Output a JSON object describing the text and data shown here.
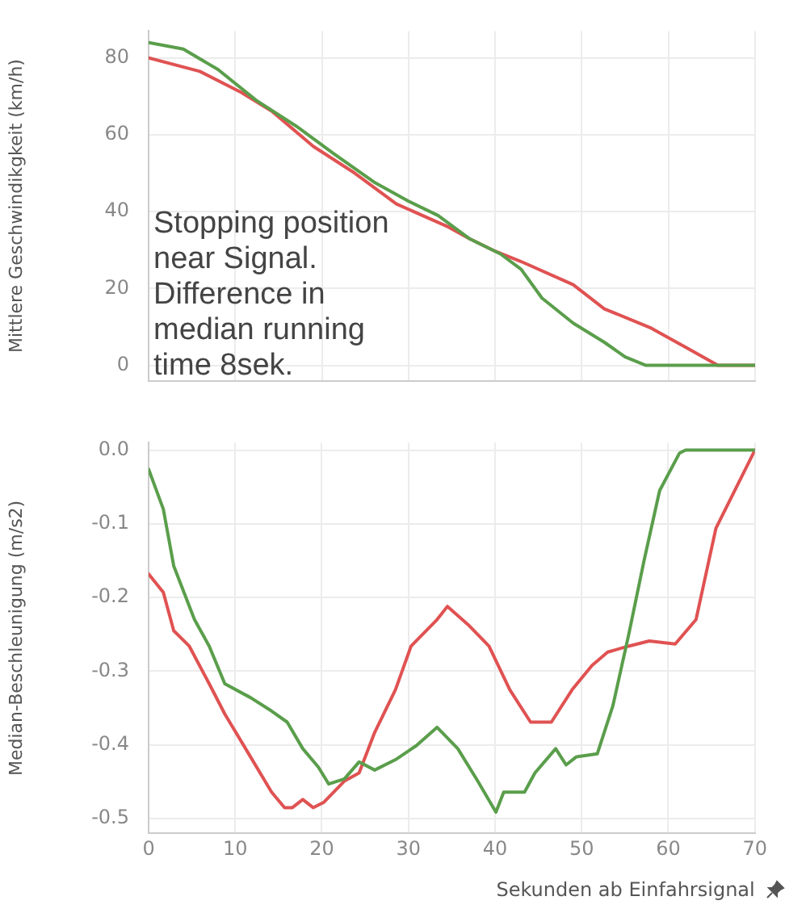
{
  "chart_data": [
    {
      "type": "line",
      "ylabel": "Mittlere Geschwindikgkeit (km/h)",
      "xlim": [
        0,
        70
      ],
      "xticks": [
        0,
        10,
        20,
        30,
        40,
        50,
        60,
        70
      ],
      "ylim": [
        -4,
        87
      ],
      "yticks": [
        0,
        20,
        40,
        60,
        80
      ],
      "grid": true,
      "tick_labels": "y",
      "legend": false,
      "marker": "none",
      "line_style": "solid",
      "annotations": [
        "Stopping position near Signal.\nDifference in median running time 8sek."
      ],
      "series": [
        {
          "color": "#5a9e4b",
          "x": [
            0,
            4,
            8,
            12.4,
            17,
            21.4,
            26,
            30,
            33.4,
            37,
            40.6,
            43,
            45.4,
            49,
            52.6,
            55,
            57.4,
            70
          ],
          "values": [
            84,
            82.3,
            77,
            69,
            62.3,
            55,
            47.7,
            42.7,
            39,
            33,
            29,
            25,
            17.5,
            11,
            6,
            2.2,
            0,
            0
          ]
        },
        {
          "color": "#e05252",
          "x": [
            0,
            5.9,
            10.7,
            14.3,
            19,
            23.8,
            28.6,
            34.6,
            37,
            40,
            43,
            49,
            52.6,
            58,
            62,
            65.7,
            70
          ],
          "values": [
            80,
            76.5,
            71,
            66,
            57,
            50,
            42,
            36,
            33,
            29.7,
            27,
            21,
            14.7,
            9.7,
            4.7,
            0,
            0
          ]
        }
      ]
    },
    {
      "type": "line",
      "ylabel": "Median-Beschleunigung (m/s2)",
      "xlabel": "Sekunden ab Einfahrsignal",
      "xlim": [
        0,
        70
      ],
      "xticks": [
        0,
        10,
        20,
        30,
        40,
        50,
        60,
        70
      ],
      "ylim": [
        -0.52,
        0.01
      ],
      "yticks": [
        {
          "value": 0,
          "label": "0.0"
        },
        -0.1,
        -0.2,
        -0.3,
        -0.4,
        -0.5
      ],
      "grid": true,
      "legend": false,
      "marker": "none",
      "line_style": "solid",
      "series": [
        {
          "color": "#5a9e4b",
          "x": [
            0,
            1.7,
            2.9,
            5.3,
            7,
            8.8,
            11.8,
            14.2,
            16,
            17.8,
            19.6,
            20.8,
            22.6,
            24.3,
            26.1,
            28.5,
            30.9,
            33.3,
            35.7,
            38,
            40.1,
            41,
            43.4,
            44.6,
            47,
            48.2,
            49.4,
            51.8,
            53.6,
            55.4,
            57.2,
            59,
            61.3,
            62,
            70
          ],
          "values": [
            -0.026,
            -0.08,
            -0.157,
            -0.23,
            -0.266,
            -0.317,
            -0.336,
            -0.354,
            -0.369,
            -0.405,
            -0.43,
            -0.453,
            -0.446,
            -0.423,
            -0.434,
            -0.42,
            -0.401,
            -0.376,
            -0.405,
            -0.449,
            -0.491,
            -0.464,
            -0.464,
            -0.438,
            -0.405,
            -0.427,
            -0.416,
            -0.412,
            -0.347,
            -0.252,
            -0.15,
            -0.055,
            -0.004,
            0,
            0
          ]
        },
        {
          "color": "#e05252",
          "x": [
            0,
            1.7,
            2.9,
            4.7,
            7,
            8.8,
            11.2,
            14.2,
            15.7,
            16.6,
            17.8,
            19,
            20.2,
            22.6,
            24.3,
            26.1,
            28.5,
            30.3,
            33.3,
            34.5,
            36.9,
            39.3,
            41.7,
            44.1,
            46.5,
            48.9,
            51.2,
            53,
            55.4,
            57.8,
            60.8,
            63.2,
            65.5,
            70
          ],
          "values": [
            -0.168,
            -0.193,
            -0.245,
            -0.266,
            -0.317,
            -0.358,
            -0.405,
            -0.464,
            -0.485,
            -0.485,
            -0.474,
            -0.485,
            -0.478,
            -0.449,
            -0.438,
            -0.383,
            -0.325,
            -0.266,
            -0.23,
            -0.212,
            -0.237,
            -0.266,
            -0.325,
            -0.369,
            -0.369,
            -0.325,
            -0.292,
            -0.274,
            -0.266,
            -0.259,
            -0.263,
            -0.23,
            -0.106,
            0
          ]
        }
      ]
    }
  ]
}
